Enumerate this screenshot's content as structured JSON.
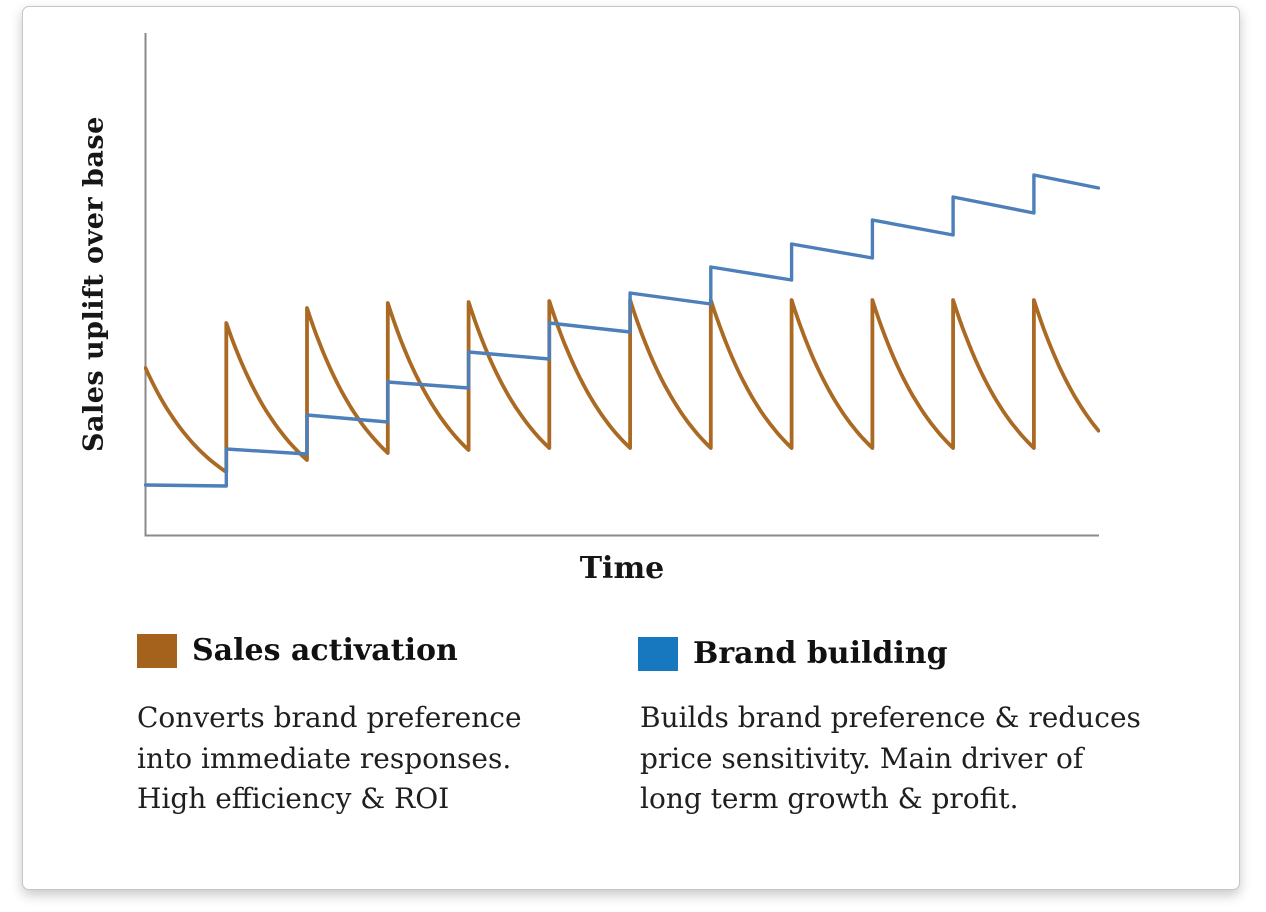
{
  "card": {
    "background": "#ffffff",
    "border_color": "#c6c6c6"
  },
  "chart_data": {
    "type": "line",
    "title": "",
    "xlabel": "Time",
    "ylabel": "Sales uplift over base",
    "x_range": [
      0,
      11.8
    ],
    "y_range": [
      0,
      10
    ],
    "grid": false,
    "ticks": "none",
    "axis_color": "#8a8a8a",
    "legend_position": "below",
    "x_unit": "campaign cycles (bursts at x = 1..11)",
    "y_unit": "relative sales uplift over base",
    "series": [
      {
        "name": "Sales activation",
        "color": "#ab6a23",
        "swatch_color": "#a5621d",
        "style": "sawtooth_decay",
        "decay_k": 1.2,
        "cycles": [
          {
            "x": 0,
            "peak": 3.34,
            "trough": 1.26
          },
          {
            "x": 1,
            "peak": 4.24,
            "trough": 1.5
          },
          {
            "x": 2,
            "peak": 4.54,
            "trough": 1.64
          },
          {
            "x": 3,
            "peak": 4.64,
            "trough": 1.7
          },
          {
            "x": 4,
            "peak": 4.66,
            "trough": 1.74
          },
          {
            "x": 5,
            "peak": 4.68,
            "trough": 1.74
          },
          {
            "x": 6,
            "peak": 4.7,
            "trough": 1.74
          },
          {
            "x": 7,
            "peak": 4.7,
            "trough": 1.74
          },
          {
            "x": 8,
            "peak": 4.7,
            "trough": 1.74
          },
          {
            "x": 9,
            "peak": 4.7,
            "trough": 1.74
          },
          {
            "x": 10,
            "peak": 4.7,
            "trough": 1.74
          },
          {
            "x": 11,
            "peak": 4.7,
            "trough": 1.74,
            "span": 0.8
          }
        ]
      },
      {
        "name": "Brand building",
        "color": "#4d7fba",
        "swatch_color": "#1778bf",
        "style": "step",
        "points": [
          [
            0,
            1.0
          ],
          [
            1,
            0.98
          ],
          [
            1,
            1.72
          ],
          [
            2,
            1.62
          ],
          [
            2,
            2.4
          ],
          [
            3,
            2.26
          ],
          [
            3,
            3.06
          ],
          [
            4,
            2.94
          ],
          [
            4,
            3.66
          ],
          [
            5,
            3.52
          ],
          [
            5,
            4.24
          ],
          [
            6,
            4.06
          ],
          [
            6,
            4.84
          ],
          [
            7,
            4.62
          ],
          [
            7,
            5.36
          ],
          [
            8,
            5.1
          ],
          [
            8,
            5.82
          ],
          [
            9,
            5.54
          ],
          [
            9,
            6.3
          ],
          [
            10,
            6.0
          ],
          [
            10,
            6.76
          ],
          [
            11,
            6.44
          ],
          [
            11,
            7.2
          ],
          [
            11.8,
            6.94
          ]
        ]
      }
    ]
  },
  "legend_notes": {
    "activation": "Converts brand preference\ninto immediate responses.\nHigh efficiency & ROI",
    "brand": "Builds brand preference & reduces\nprice sensitivity. Main driver of\nlong term growth & profit."
  }
}
